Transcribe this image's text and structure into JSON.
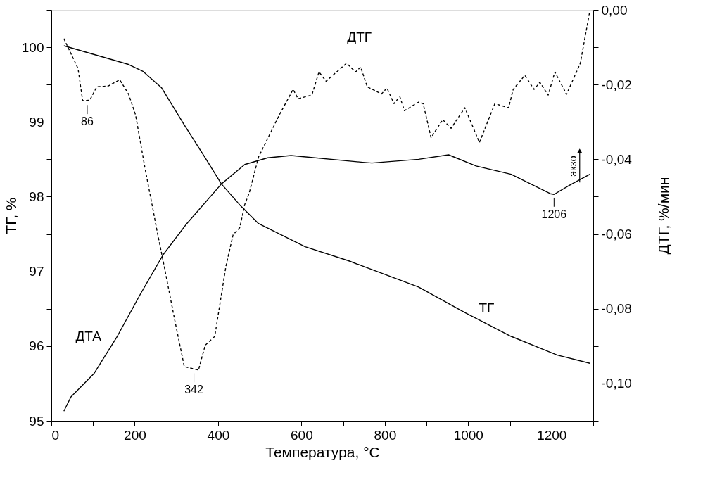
{
  "chart_data": {
    "type": "line",
    "xlabel": "Температура, °C",
    "ylabel": "ТГ, %",
    "y2label": "ДТГ, %/мин",
    "xlim": [
      0,
      1300
    ],
    "ylim": [
      95,
      100.5
    ],
    "y2lim": [
      -0.11,
      0.0
    ],
    "xticks": [
      0,
      {
        "value": 100,
        "label": null
      },
      200,
      {
        "value": 300,
        "label": null
      },
      400,
      {
        "value": 500,
        "label": null
      },
      600,
      {
        "value": 700,
        "label": null
      },
      800,
      {
        "value": 900,
        "label": null
      },
      1000,
      {
        "value": 1100,
        "label": null
      },
      1200,
      {
        "value": 1300,
        "label": null
      }
    ],
    "yticks": [
      95,
      {
        "value": 95.5,
        "label": null
      },
      96,
      {
        "value": 96.5,
        "label": null
      },
      97,
      {
        "value": 97.5,
        "label": null
      },
      98,
      {
        "value": 98.5,
        "label": null
      },
      99,
      {
        "value": 99.5,
        "label": null
      },
      100,
      {
        "value": 100.5,
        "label": null
      }
    ],
    "y2ticks": [
      {
        "value": -0.11,
        "label": null
      },
      {
        "value": -0.1,
        "label": "-0,10"
      },
      {
        "value": -0.09,
        "label": null
      },
      {
        "value": -0.08,
        "label": "-0,08"
      },
      {
        "value": -0.07,
        "label": null
      },
      {
        "value": -0.06,
        "label": "-0,06"
      },
      {
        "value": -0.05,
        "label": null
      },
      {
        "value": -0.04,
        "label": "-0,04"
      },
      {
        "value": -0.03,
        "label": null
      },
      {
        "value": -0.02,
        "label": "-0,02"
      },
      {
        "value": -0.01,
        "label": null
      },
      {
        "value": 0.0,
        "label": "0,00"
      }
    ],
    "grid": false,
    "marker": "none",
    "series": [
      {
        "name": "ТГ",
        "color": "#000000",
        "line_style": "solid",
        "x": [
          30,
          185,
          219,
          264,
          319,
          369,
          408,
          452,
          497,
          519,
          609,
          714,
          747,
          881,
          992,
          1103,
          1214,
          1292
        ],
        "values": [
          100.02,
          99.77,
          99.68,
          99.46,
          98.96,
          98.52,
          98.17,
          97.89,
          97.64,
          97.58,
          97.33,
          97.14,
          97.07,
          96.79,
          96.45,
          96.13,
          95.88,
          95.77
        ]
      },
      {
        "name": "ДТА",
        "color": "#000000",
        "line_style": "solid",
        "x": [
          30,
          47,
          102,
          158,
          214,
          269,
          325,
          408,
          464,
          519,
          575,
          747,
          769,
          881,
          953,
          1019,
          1103,
          1197,
          1206,
          1242,
          1292
        ],
        "values": [
          95.13,
          95.32,
          95.63,
          96.13,
          96.7,
          97.23,
          97.64,
          98.17,
          98.43,
          98.52,
          98.55,
          98.46,
          98.45,
          98.5,
          98.56,
          98.41,
          98.3,
          98.04,
          98.03,
          98.15,
          98.3
        ]
      },
      {
        "name": "ДТГ",
        "color": "#000000",
        "line_style": "dashed",
        "axis": "y2",
        "x": [
          30,
          64,
          75,
          92,
          109,
          136,
          164,
          185,
          202,
          225,
          247,
          252,
          269,
          297,
          319,
          353,
          369,
          392,
          419,
          436,
          452,
          464,
          475,
          497,
          547,
          580,
          592,
          625,
          642,
          659,
          708,
          730,
          742,
          758,
          792,
          805,
          822,
          836,
          847,
          881,
          892,
          911,
          939,
          959,
          992,
          1027,
          1064,
          1097,
          1108,
          1136,
          1158,
          1172,
          1192,
          1208,
          1236,
          1269,
          1292
        ],
        "values": [
          -0.0077,
          -0.0157,
          -0.0243,
          -0.0242,
          -0.0206,
          -0.0204,
          -0.0187,
          -0.0225,
          -0.0281,
          -0.0426,
          -0.0553,
          -0.0583,
          -0.0677,
          -0.0836,
          -0.0955,
          -0.0964,
          -0.0898,
          -0.0874,
          -0.0685,
          -0.0602,
          -0.0583,
          -0.0521,
          -0.0489,
          -0.0394,
          -0.0281,
          -0.0213,
          -0.0238,
          -0.0228,
          -0.0166,
          -0.0191,
          -0.0143,
          -0.0166,
          -0.0153,
          -0.0206,
          -0.0225,
          -0.0209,
          -0.0251,
          -0.0232,
          -0.027,
          -0.0247,
          -0.0251,
          -0.0342,
          -0.0294,
          -0.0317,
          -0.0262,
          -0.0355,
          -0.0251,
          -0.0262,
          -0.0213,
          -0.0175,
          -0.0213,
          -0.0194,
          -0.0228,
          -0.0166,
          -0.0226,
          -0.0143,
          -0.0002
        ]
      }
    ],
    "annotations": [
      {
        "text": "86",
        "x": 86,
        "y": 99.27
      },
      {
        "text": "342",
        "x": 342,
        "y": 95.68
      },
      {
        "text": "1206",
        "x": 1206,
        "y": 98.03
      },
      "экзо"
    ]
  }
}
